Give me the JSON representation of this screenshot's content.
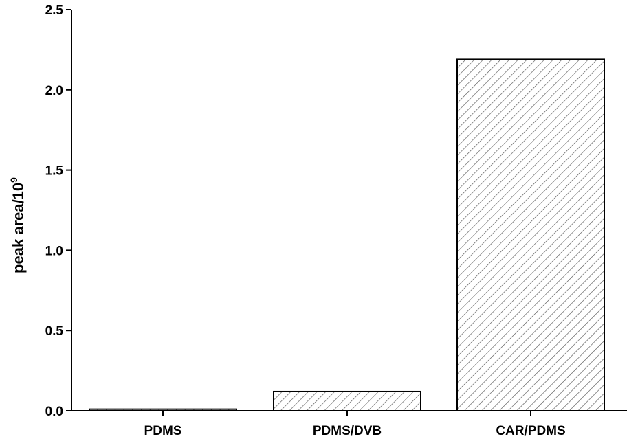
{
  "chart_data": {
    "type": "bar",
    "title": "",
    "xlabel": "",
    "ylabel": {
      "base": "peak area/10",
      "superscript": "9"
    },
    "categories": [
      "PDMS",
      "PDMS/DVB",
      "CAR/PDMS"
    ],
    "values": [
      0.01,
      0.12,
      2.19
    ],
    "ylim": [
      0,
      2.5
    ],
    "yticks": [
      "0.0",
      "0.5",
      "1.0",
      "1.5",
      "2.0",
      "2.5"
    ],
    "grid": false,
    "legend": "none",
    "bar_fill": "hatched diagonal",
    "colors": {
      "bar_stroke": "#000000",
      "hatch": "#555555",
      "axis": "#000000",
      "background": "#ffffff"
    }
  }
}
